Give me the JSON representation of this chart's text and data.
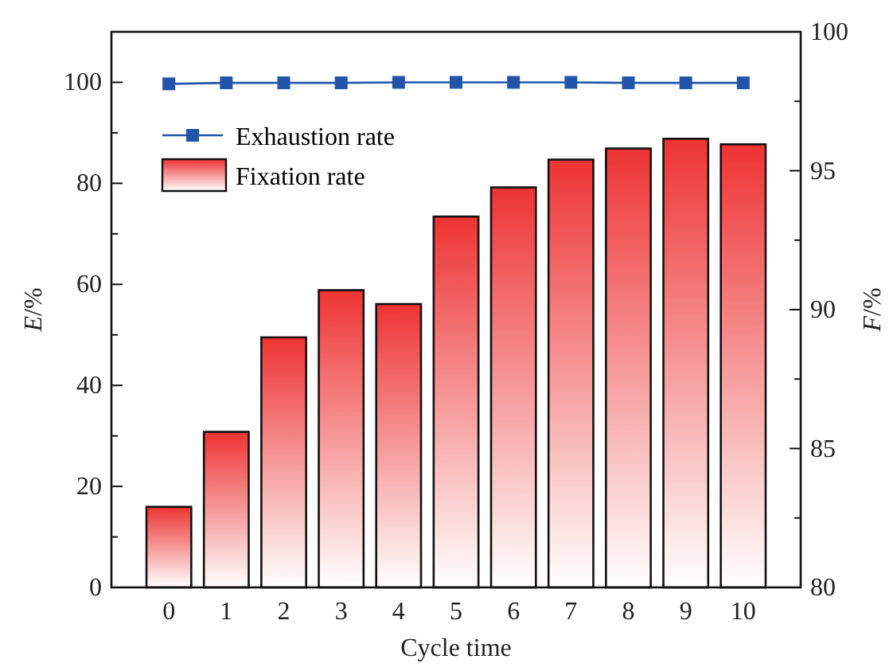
{
  "chart_data": {
    "type": "bar",
    "xlabel": "Cycle time",
    "ylabel": "E/%",
    "y2label": "F/%",
    "categories": [
      "0",
      "1",
      "2",
      "3",
      "4",
      "5",
      "6",
      "7",
      "8",
      "9",
      "10"
    ],
    "series": [
      {
        "name": "Exhaustion rate",
        "type": "line",
        "color": "#2255aa",
        "values": [
          99.7,
          99.9,
          99.9,
          99.9,
          100,
          100,
          100,
          100,
          99.9,
          99.9,
          99.9
        ]
      },
      {
        "name": "Fixation rate",
        "axis": "y2",
        "color": "#ee3333",
        "values": [
          82.9,
          85.6,
          89.0,
          90.7,
          90.2,
          93.35,
          94.4,
          95.4,
          95.8,
          96.15,
          95.95
        ]
      }
    ],
    "ylim": [
      0,
      110
    ],
    "yticks": [
      0,
      {
        "value": 10,
        "label": null
      },
      20,
      {
        "value": 30,
        "label": null
      },
      40,
      {
        "value": 50,
        "label": null
      },
      60,
      {
        "value": 70,
        "label": null
      },
      80,
      {
        "value": 90,
        "label": null
      },
      100
    ],
    "y2lim": [
      80,
      100
    ],
    "y2ticks": [
      80,
      {
        "value": 82.5,
        "label": null
      },
      85,
      {
        "value": 87.5,
        "label": null
      },
      90,
      {
        "value": 92.5,
        "label": null
      },
      95,
      {
        "value": 97.5,
        "label": null
      },
      100
    ],
    "marker": "square",
    "legend": "top left",
    "grid": false
  }
}
